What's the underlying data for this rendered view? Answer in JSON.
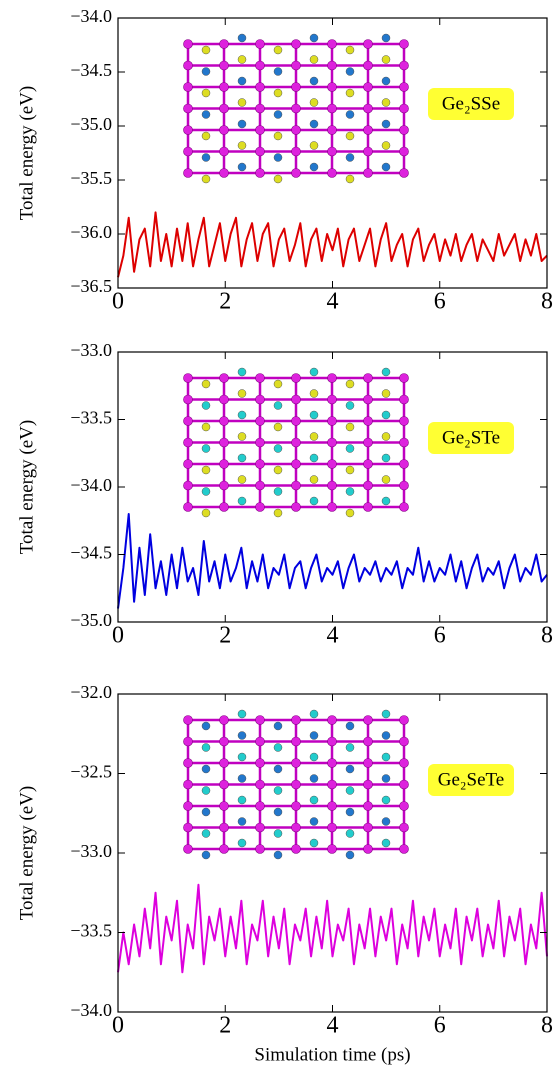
{
  "chart_data": [
    {
      "type": "line",
      "y_label": "Total energy (eV)",
      "annotation": "Ge₂SSe",
      "color": "#dd0000",
      "x": [
        0,
        0.1,
        0.2,
        0.3,
        0.4,
        0.5,
        0.6,
        0.7,
        0.8,
        0.9,
        1,
        1.1,
        1.2,
        1.3,
        1.4,
        1.5,
        1.6,
        1.7,
        1.8,
        1.9,
        2,
        2.1,
        2.2,
        2.3,
        2.4,
        2.5,
        2.6,
        2.7,
        2.8,
        2.9,
        3,
        3.1,
        3.2,
        3.3,
        3.4,
        3.5,
        3.6,
        3.7,
        3.8,
        3.9,
        4,
        4.1,
        4.2,
        4.3,
        4.4,
        4.5,
        4.6,
        4.7,
        4.8,
        4.9,
        5,
        5.1,
        5.2,
        5.3,
        5.4,
        5.5,
        5.6,
        5.7,
        5.8,
        5.9,
        6,
        6.1,
        6.2,
        6.3,
        6.4,
        6.5,
        6.6,
        6.7,
        6.8,
        6.9,
        7,
        7.1,
        7.2,
        7.3,
        7.4,
        7.5,
        7.6,
        7.7,
        7.8,
        7.9,
        8
      ],
      "values": [
        -36.4,
        -36.2,
        -35.85,
        -36.35,
        -36.05,
        -35.95,
        -36.3,
        -35.8,
        -36.25,
        -36.0,
        -36.3,
        -35.95,
        -36.25,
        -35.9,
        -36.3,
        -36.05,
        -35.85,
        -36.3,
        -36.1,
        -35.9,
        -36.25,
        -36.0,
        -35.85,
        -36.3,
        -36.05,
        -35.9,
        -36.25,
        -36.0,
        -35.9,
        -36.3,
        -36.05,
        -35.95,
        -36.25,
        -36.1,
        -35.9,
        -36.3,
        -36.05,
        -35.95,
        -36.25,
        -36.0,
        -36.15,
        -35.95,
        -36.3,
        -36.05,
        -35.95,
        -36.25,
        -36.1,
        -35.95,
        -36.3,
        -36.05,
        -35.9,
        -36.25,
        -36.1,
        -36.0,
        -36.3,
        -36.05,
        -35.95,
        -36.25,
        -36.1,
        -36.0,
        -36.25,
        -36.05,
        -36.2,
        -36.0,
        -36.25,
        -36.1,
        -36.0,
        -36.25,
        -36.05,
        -36.15,
        -36.25,
        -36.0,
        -36.2,
        -36.1,
        -36.0,
        -36.25,
        -36.05,
        -36.2,
        -36.0,
        -36.25,
        -36.2
      ],
      "xlim": [
        0,
        8
      ],
      "xticks": [
        0,
        2,
        4,
        6,
        8
      ],
      "ylim": [
        -36.5,
        -34.0
      ],
      "yticks": [
        {
          "value": -34.0,
          "label": "−34.0"
        },
        {
          "value": -34.5,
          "label": "−34.5"
        },
        {
          "value": -35.0,
          "label": "−35.0"
        },
        {
          "value": -35.5,
          "label": "−35.5"
        },
        {
          "value": -36.0,
          "label": "−36.0"
        },
        {
          "value": -36.5,
          "label": "−36.5"
        }
      ]
    },
    {
      "type": "line",
      "y_label": "Total energy (eV)",
      "annotation": "Ge₂STe",
      "color": "#0000e0",
      "x": [
        0,
        0.1,
        0.2,
        0.3,
        0.4,
        0.5,
        0.6,
        0.7,
        0.8,
        0.9,
        1,
        1.1,
        1.2,
        1.3,
        1.4,
        1.5,
        1.6,
        1.7,
        1.8,
        1.9,
        2,
        2.1,
        2.2,
        2.3,
        2.4,
        2.5,
        2.6,
        2.7,
        2.8,
        2.9,
        3,
        3.1,
        3.2,
        3.3,
        3.4,
        3.5,
        3.6,
        3.7,
        3.8,
        3.9,
        4,
        4.1,
        4.2,
        4.3,
        4.4,
        4.5,
        4.6,
        4.7,
        4.8,
        4.9,
        5,
        5.1,
        5.2,
        5.3,
        5.4,
        5.5,
        5.6,
        5.7,
        5.8,
        5.9,
        6,
        6.1,
        6.2,
        6.3,
        6.4,
        6.5,
        6.6,
        6.7,
        6.8,
        6.9,
        7,
        7.1,
        7.2,
        7.3,
        7.4,
        7.5,
        7.6,
        7.7,
        7.8,
        7.9,
        8
      ],
      "values": [
        -34.9,
        -34.6,
        -34.2,
        -34.85,
        -34.45,
        -34.8,
        -34.35,
        -34.75,
        -34.55,
        -34.8,
        -34.5,
        -34.75,
        -34.45,
        -34.7,
        -34.6,
        -34.8,
        -34.4,
        -34.7,
        -34.55,
        -34.75,
        -34.5,
        -34.7,
        -34.6,
        -34.45,
        -34.75,
        -34.55,
        -34.7,
        -34.5,
        -34.75,
        -34.6,
        -34.65,
        -34.5,
        -34.75,
        -34.6,
        -34.55,
        -34.75,
        -34.6,
        -34.5,
        -34.7,
        -34.6,
        -34.65,
        -34.55,
        -34.75,
        -34.6,
        -34.5,
        -34.7,
        -34.6,
        -34.65,
        -34.55,
        -34.7,
        -34.6,
        -34.65,
        -34.55,
        -34.75,
        -34.6,
        -34.65,
        -34.45,
        -34.7,
        -34.55,
        -34.7,
        -34.6,
        -34.65,
        -34.5,
        -34.7,
        -34.55,
        -34.75,
        -34.6,
        -34.5,
        -34.7,
        -34.6,
        -34.65,
        -34.55,
        -34.75,
        -34.6,
        -34.5,
        -34.7,
        -34.6,
        -34.65,
        -34.5,
        -34.7,
        -34.65
      ],
      "xlim": [
        0,
        8
      ],
      "xticks": [
        0,
        2,
        4,
        6,
        8
      ],
      "ylim": [
        -35.0,
        -33.0
      ],
      "yticks": [
        {
          "value": -33.0,
          "label": "−33.0"
        },
        {
          "value": -33.5,
          "label": "−33.5"
        },
        {
          "value": -34.0,
          "label": "−34.0"
        },
        {
          "value": -34.5,
          "label": "−34.5"
        },
        {
          "value": -35.0,
          "label": "−35.0"
        }
      ]
    },
    {
      "type": "line",
      "y_label": "Total energy (eV)",
      "x_label": "Simulation time (ps)",
      "annotation": "Ge₂SeTe",
      "color": "#dd00dd",
      "x": [
        0,
        0.1,
        0.2,
        0.3,
        0.4,
        0.5,
        0.6,
        0.7,
        0.8,
        0.9,
        1,
        1.1,
        1.2,
        1.3,
        1.4,
        1.5,
        1.6,
        1.7,
        1.8,
        1.9,
        2,
        2.1,
        2.2,
        2.3,
        2.4,
        2.5,
        2.6,
        2.7,
        2.8,
        2.9,
        3,
        3.1,
        3.2,
        3.3,
        3.4,
        3.5,
        3.6,
        3.7,
        3.8,
        3.9,
        4,
        4.1,
        4.2,
        4.3,
        4.4,
        4.5,
        4.6,
        4.7,
        4.8,
        4.9,
        5,
        5.1,
        5.2,
        5.3,
        5.4,
        5.5,
        5.6,
        5.7,
        5.8,
        5.9,
        6,
        6.1,
        6.2,
        6.3,
        6.4,
        6.5,
        6.6,
        6.7,
        6.8,
        6.9,
        7,
        7.1,
        7.2,
        7.3,
        7.4,
        7.5,
        7.6,
        7.7,
        7.8,
        7.9,
        8
      ],
      "values": [
        -33.75,
        -33.5,
        -33.7,
        -33.45,
        -33.65,
        -33.35,
        -33.6,
        -33.25,
        -33.7,
        -33.4,
        -33.55,
        -33.3,
        -33.75,
        -33.45,
        -33.6,
        -33.2,
        -33.7,
        -33.4,
        -33.55,
        -33.35,
        -33.65,
        -33.4,
        -33.6,
        -33.3,
        -33.7,
        -33.45,
        -33.55,
        -33.3,
        -33.65,
        -33.4,
        -33.6,
        -33.35,
        -33.7,
        -33.45,
        -33.55,
        -33.35,
        -33.65,
        -33.4,
        -33.6,
        -33.3,
        -33.65,
        -33.45,
        -33.55,
        -33.35,
        -33.7,
        -33.45,
        -33.6,
        -33.35,
        -33.65,
        -33.4,
        -33.55,
        -33.35,
        -33.7,
        -33.45,
        -33.6,
        -33.3,
        -33.65,
        -33.4,
        -33.55,
        -33.35,
        -33.65,
        -33.45,
        -33.6,
        -33.35,
        -33.7,
        -33.4,
        -33.55,
        -33.35,
        -33.65,
        -33.45,
        -33.6,
        -33.3,
        -33.65,
        -33.4,
        -33.55,
        -33.35,
        -33.7,
        -33.45,
        -33.6,
        -33.25,
        -33.65
      ],
      "xlim": [
        0,
        8
      ],
      "xticks": [
        0,
        2,
        4,
        6,
        8
      ],
      "ylim": [
        -34.0,
        -32.0
      ],
      "yticks": [
        {
          "value": -32.0,
          "label": "−32.0"
        },
        {
          "value": -32.5,
          "label": "−32.5"
        },
        {
          "value": -33.0,
          "label": "−33.0"
        },
        {
          "value": -33.5,
          "label": "−33.5"
        },
        {
          "value": -34.0,
          "label": "−34.0"
        }
      ]
    }
  ]
}
